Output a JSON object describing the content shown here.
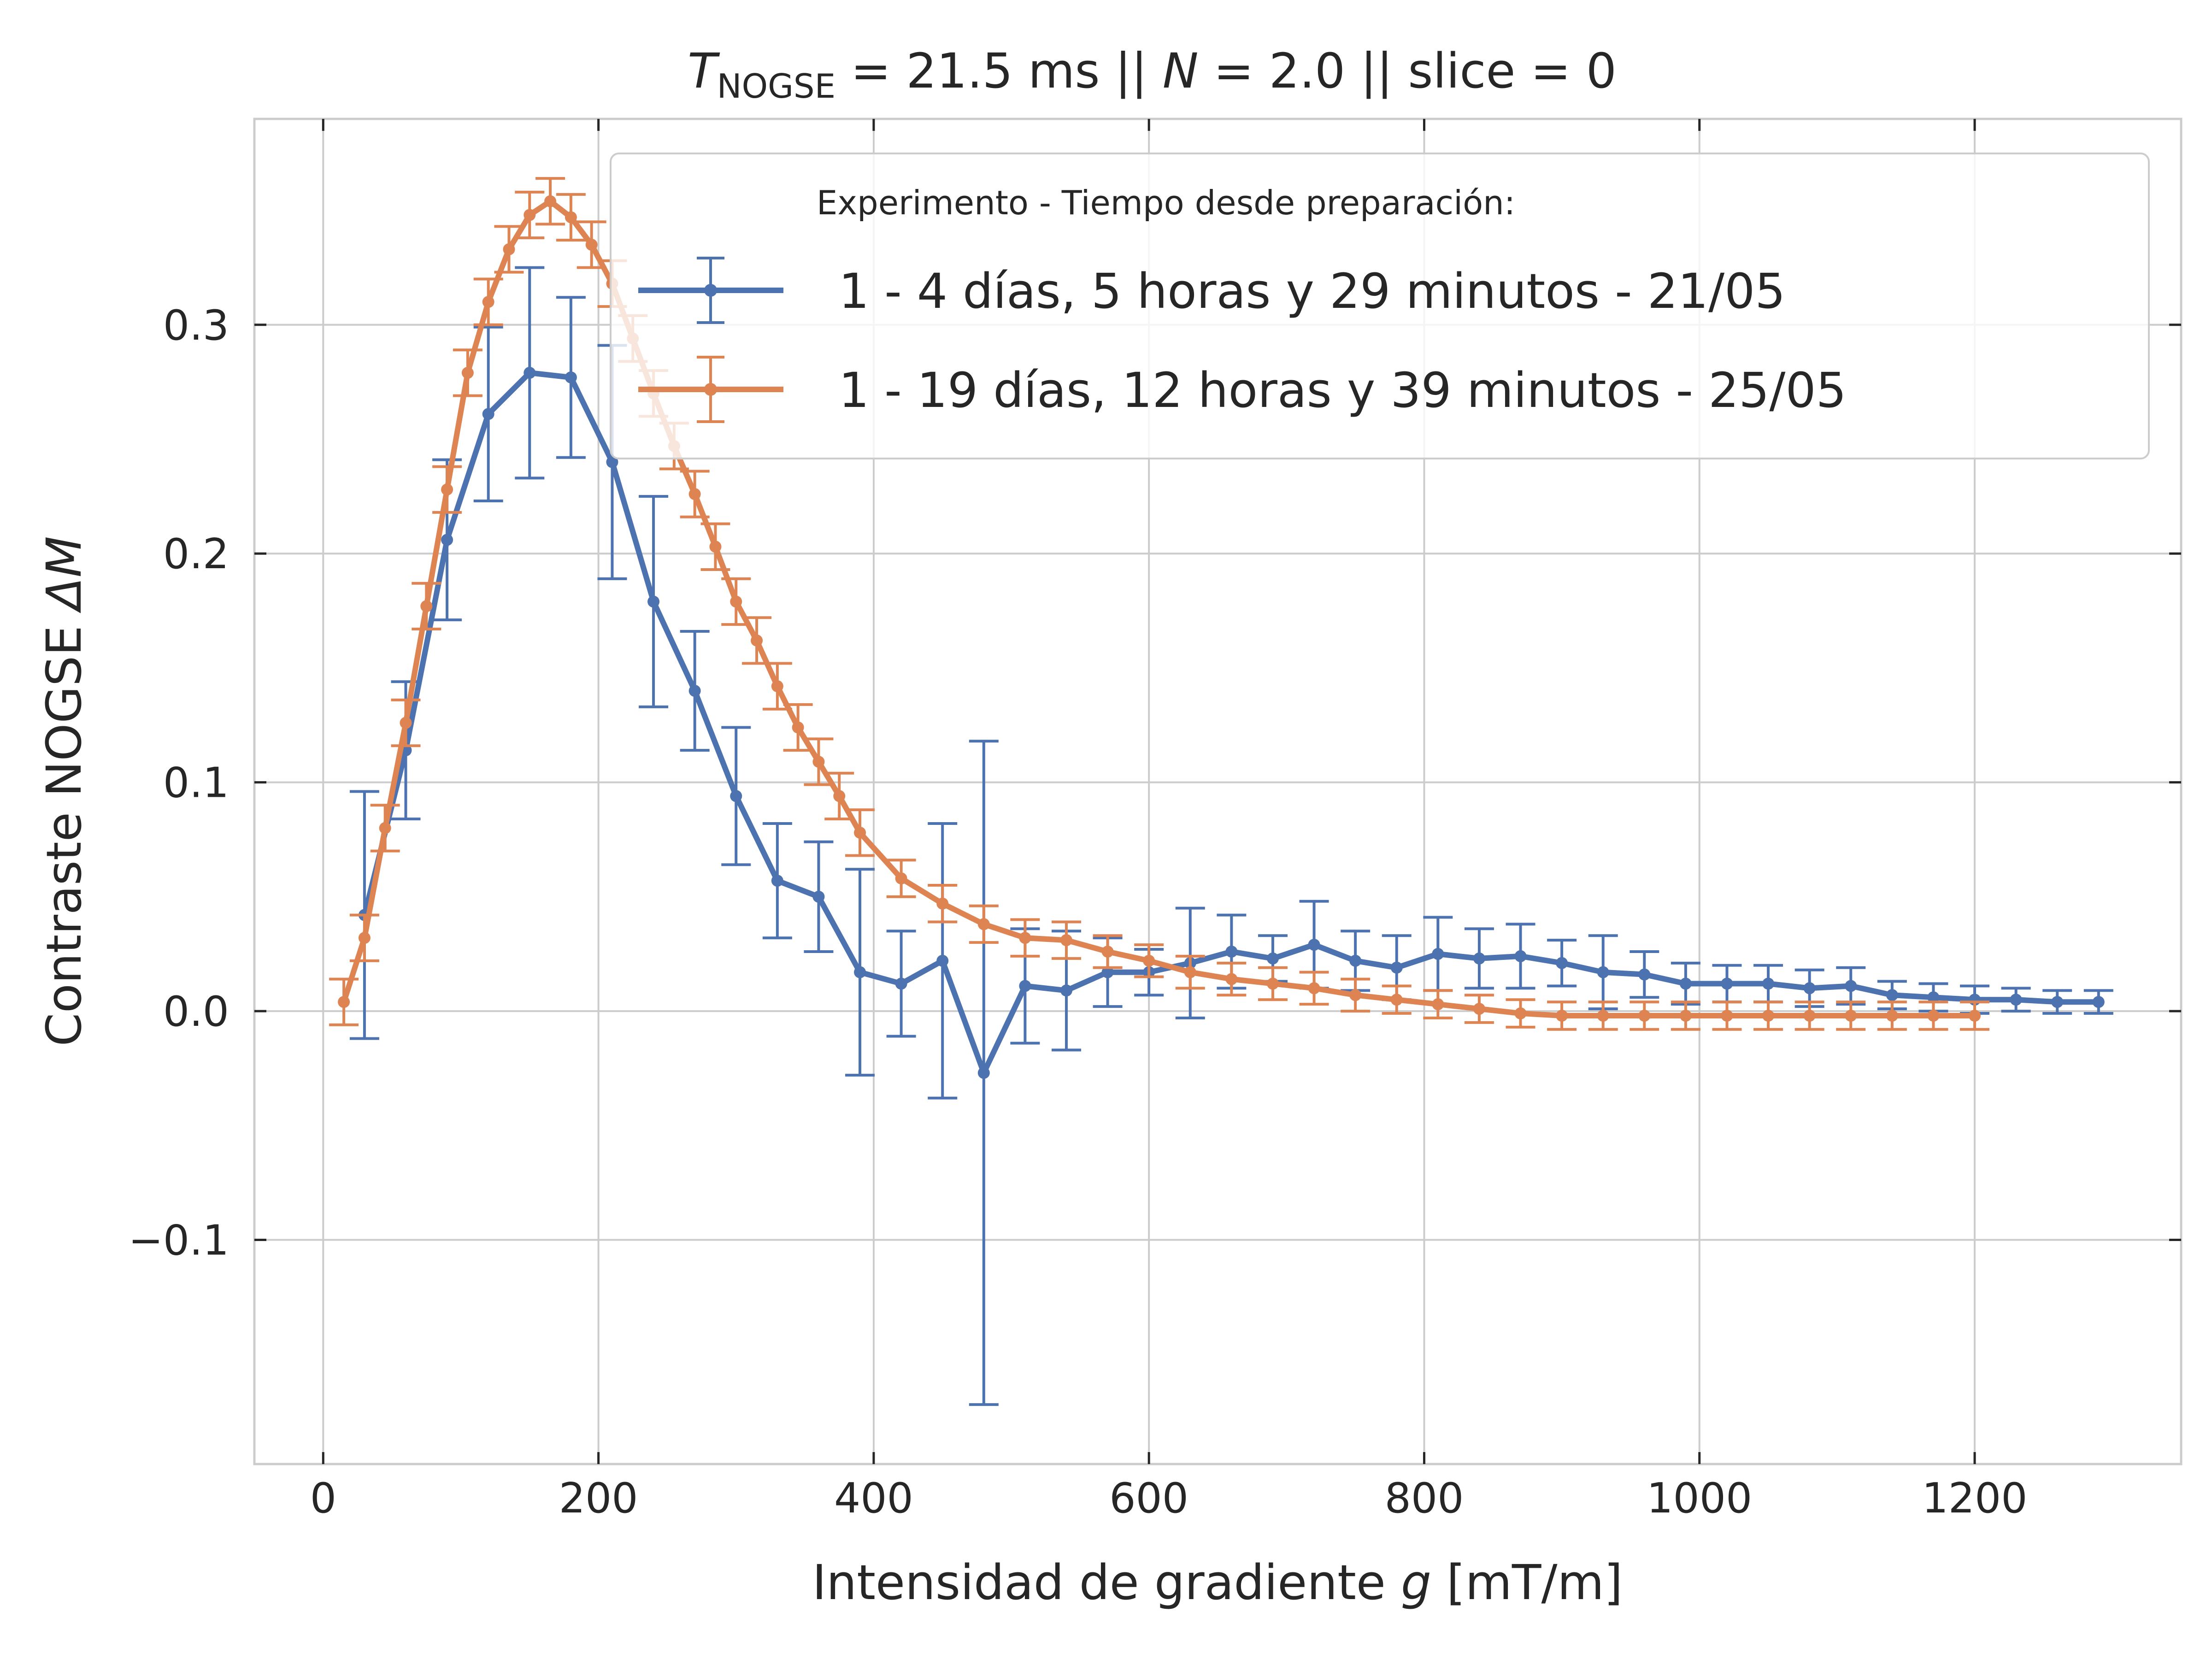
{
  "chart_data": {
    "type": "line",
    "title": {
      "t_symbol": "T",
      "t_subscript": "NOGSE",
      "t_value": " = 21.5 ms  ||  ",
      "n_symbol": "N",
      "n_value": " = 2.0 || slice = 0"
    },
    "xlabel": {
      "text": "Intensidad de gradiente ",
      "var": "g",
      "unit": " [mT/m]"
    },
    "ylabel": {
      "text": "Contraste NOGSE ",
      "var": "ΔM"
    },
    "xlim": [
      -50,
      1350
    ],
    "ylim": [
      -0.198,
      0.39
    ],
    "x_ticks": [
      0,
      200,
      400,
      600,
      800,
      1000,
      1200
    ],
    "x_tick_labels": [
      "0",
      "200",
      "400",
      "600",
      "800",
      "1000",
      "1200"
    ],
    "y_ticks": [
      -0.1,
      0.0,
      0.1,
      0.2,
      0.3
    ],
    "y_tick_labels": [
      "−0.1",
      "0.0",
      "0.1",
      "0.2",
      "0.3"
    ],
    "grid": true,
    "legend": {
      "title": "Experimento - Tiempo desde preparación:",
      "placement": "upper-right"
    },
    "series": [
      {
        "name": "1 - 4 días, 5 horas y 29 minutos - 21/05",
        "color": "#4c72b0",
        "x": [
          30,
          60,
          90,
          120,
          150,
          180,
          210,
          240,
          270,
          300,
          330,
          360,
          390,
          420,
          450,
          480,
          510,
          540,
          570,
          600,
          630,
          660,
          690,
          720,
          750,
          780,
          810,
          840,
          870,
          900,
          930,
          960,
          990,
          1020,
          1050,
          1080,
          1110,
          1140,
          1170,
          1200,
          1230,
          1260,
          1290
        ],
        "y": [
          0.042,
          0.114,
          0.206,
          0.261,
          0.279,
          0.277,
          0.24,
          0.179,
          0.14,
          0.094,
          0.057,
          0.05,
          0.017,
          0.012,
          0.022,
          -0.027,
          0.011,
          0.009,
          0.017,
          0.017,
          0.021,
          0.026,
          0.023,
          0.029,
          0.022,
          0.019,
          0.025,
          0.023,
          0.024,
          0.021,
          0.017,
          0.016,
          0.012,
          0.012,
          0.012,
          0.01,
          0.011,
          0.007,
          0.006,
          0.005,
          0.005,
          0.004,
          0.004
        ],
        "err": [
          0.054,
          0.03,
          0.035,
          0.038,
          0.046,
          0.035,
          0.051,
          0.046,
          0.026,
          0.03,
          0.025,
          0.024,
          0.045,
          0.023,
          0.06,
          0.145,
          0.025,
          0.026,
          0.015,
          0.01,
          0.024,
          0.016,
          0.01,
          0.019,
          0.013,
          0.014,
          0.016,
          0.013,
          0.014,
          0.01,
          0.016,
          0.01,
          0.009,
          0.008,
          0.008,
          0.008,
          0.008,
          0.006,
          0.006,
          0.006,
          0.005,
          0.005,
          0.005
        ]
      },
      {
        "name": "1 - 19 días, 12 horas y 39 minutos - 25/05",
        "color": "#dd8452",
        "x": [
          15,
          30,
          45,
          60,
          75,
          90,
          105,
          120,
          135,
          150,
          165,
          180,
          195,
          210,
          225,
          240,
          255,
          270,
          285,
          300,
          315,
          330,
          345,
          360,
          375,
          390,
          420,
          450,
          480,
          510,
          540,
          570,
          600,
          630,
          660,
          690,
          720,
          750,
          780,
          810,
          840,
          870,
          900,
          930,
          960,
          990,
          1020,
          1050,
          1080,
          1110,
          1140,
          1170,
          1200
        ],
        "y": [
          0.004,
          0.032,
          0.08,
          0.126,
          0.177,
          0.228,
          0.279,
          0.31,
          0.333,
          0.348,
          0.354,
          0.347,
          0.335,
          0.318,
          0.294,
          0.27,
          0.247,
          0.226,
          0.203,
          0.179,
          0.162,
          0.142,
          0.124,
          0.109,
          0.094,
          0.078,
          0.058,
          0.047,
          0.038,
          0.032,
          0.031,
          0.026,
          0.022,
          0.017,
          0.014,
          0.012,
          0.01,
          0.007,
          0.005,
          0.003,
          0.001,
          -0.001,
          -0.002,
          -0.002,
          -0.002,
          -0.002,
          -0.002,
          -0.002,
          -0.002,
          -0.002,
          -0.002,
          -0.002,
          -0.002
        ],
        "err": [
          0.01,
          0.01,
          0.01,
          0.01,
          0.01,
          0.01,
          0.01,
          0.01,
          0.01,
          0.01,
          0.01,
          0.01,
          0.01,
          0.01,
          0.01,
          0.01,
          0.01,
          0.01,
          0.01,
          0.01,
          0.01,
          0.01,
          0.01,
          0.01,
          0.01,
          0.01,
          0.008,
          0.008,
          0.008,
          0.008,
          0.008,
          0.007,
          0.007,
          0.007,
          0.007,
          0.007,
          0.007,
          0.007,
          0.006,
          0.006,
          0.006,
          0.006,
          0.006,
          0.006,
          0.006,
          0.006,
          0.006,
          0.006,
          0.006,
          0.006,
          0.006,
          0.006,
          0.006
        ]
      }
    ]
  }
}
